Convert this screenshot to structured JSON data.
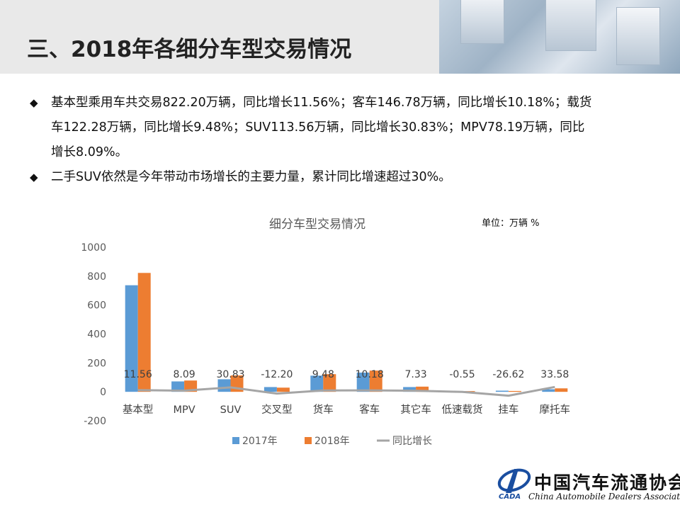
{
  "slide": {
    "title": "三、2018年各细分车型交易情况"
  },
  "bullets": [
    {
      "text": "基本型乘用车共交易822.20万辆，同比增长11.56%；客车146.78万辆，同比增长10.18%；载货车122.28万辆，同比增长9.48%；SUV113.56万辆，同比增长30.83%；MPV78.19万辆，同比增长8.09%。"
    },
    {
      "text": "二手SUV依然是今年带动市场增长的主要力量，累计同比增速超过30%。"
    }
  ],
  "logo": {
    "name_cn": "中国汽车流通协会",
    "name_en": "China Automobile Dealers Association",
    "abbr": "CADA"
  },
  "chart_data": {
    "type": "bar",
    "title": "细分车型交易情况",
    "unit_note": "单位：万辆  %",
    "categories": [
      "基本型",
      "MPV",
      "SUV",
      "交叉型",
      "货车",
      "客车",
      "其它车",
      "低速载货",
      "挂车",
      "摩托车"
    ],
    "series": [
      {
        "name": "2017年",
        "type": "bar",
        "color": "#5b9bd5",
        "values": [
          737,
          72,
          87,
          33,
          112,
          133,
          33,
          5,
          8,
          18
        ]
      },
      {
        "name": "2018年",
        "type": "bar",
        "color": "#ed7d31",
        "values": [
          822.2,
          78.19,
          113.56,
          29,
          122.28,
          146.78,
          36,
          5,
          6,
          24
        ]
      },
      {
        "name": "同比增长",
        "type": "line",
        "color": "#a5a5a5",
        "values": [
          11.56,
          8.09,
          30.83,
          -12.2,
          9.48,
          10.18,
          7.33,
          -0.55,
          -26.62,
          33.58
        ]
      }
    ],
    "growth_labels": [
      "11.56",
      "8.09",
      "30.83",
      "-12.20",
      "9.48",
      "10.18",
      "7.33",
      "-0.55",
      "-26.62",
      "33.58"
    ],
    "ylim": [
      -200,
      1000
    ],
    "yticks": [
      -200,
      0,
      200,
      400,
      600,
      800,
      1000
    ],
    "grid": false,
    "legend_position": "bottom"
  }
}
